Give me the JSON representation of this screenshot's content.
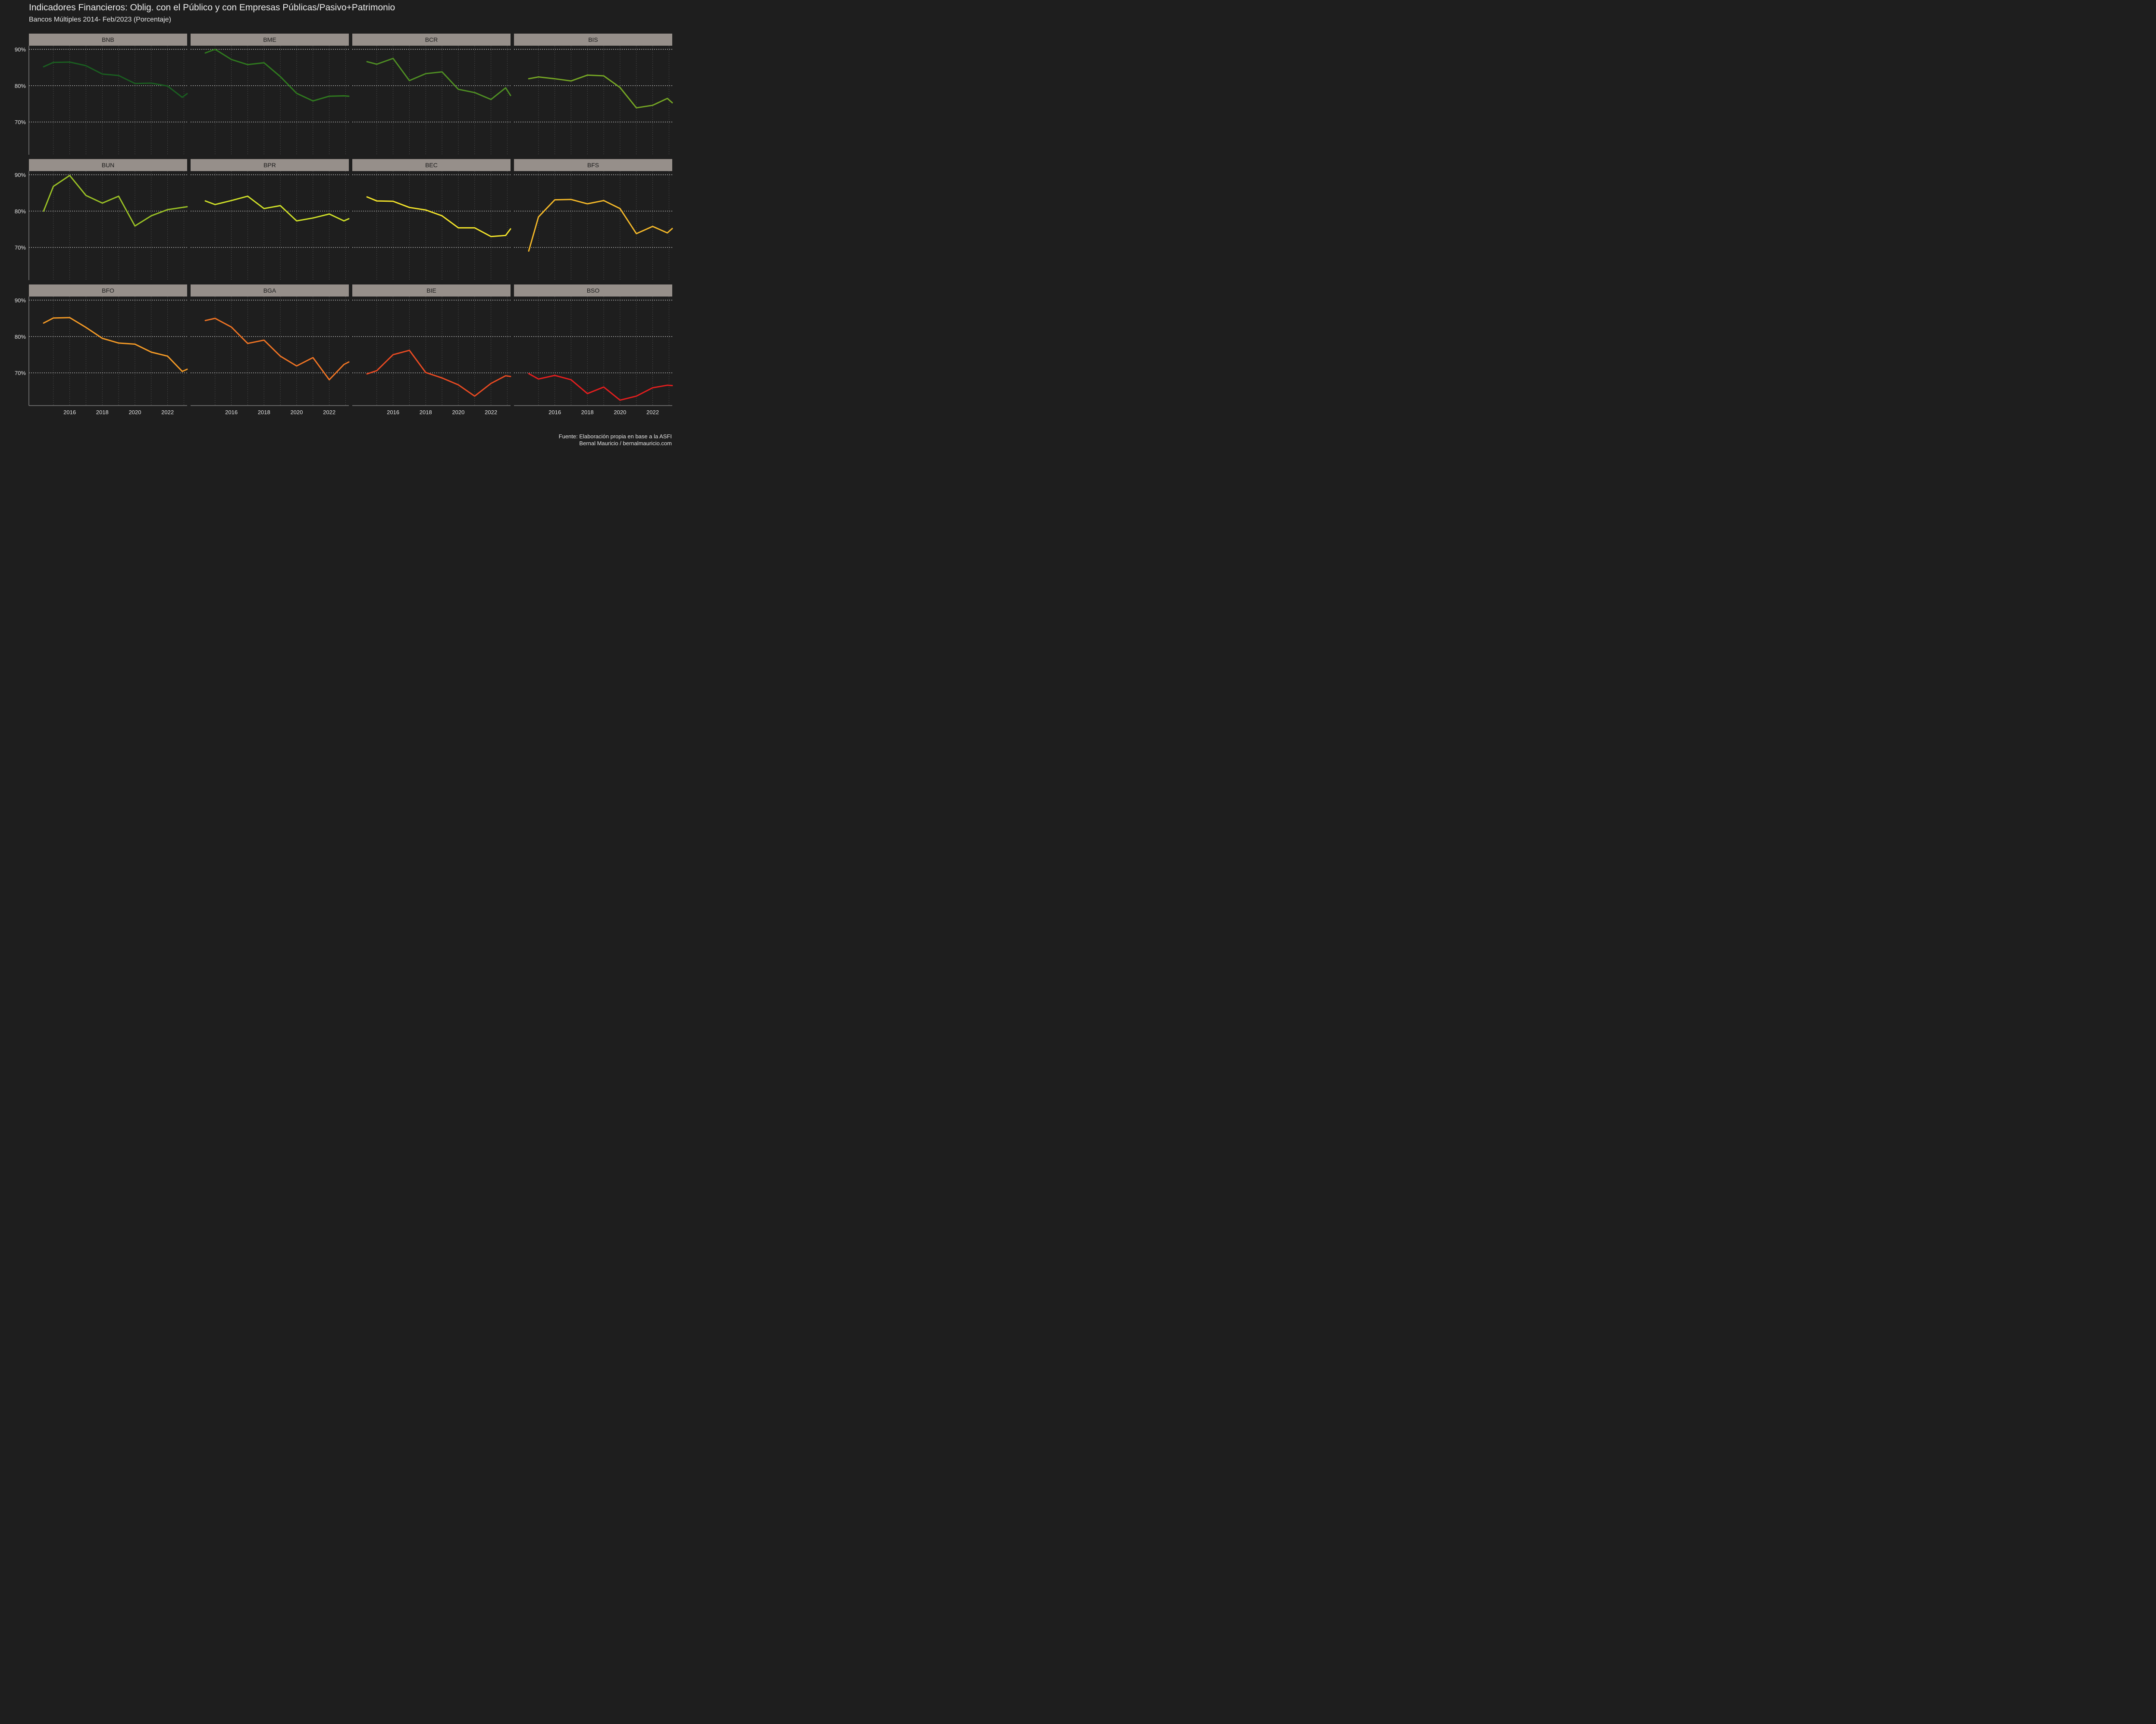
{
  "chart_data": {
    "type": "line",
    "title": "Indicadores Financieros: Oblig. con el Público y con Empresas Públicas/Pasivo+Patrimonio",
    "subtitle": "Bancos Múltiples 2014- Feb/2023 (Porcentaje)",
    "caption": [
      "Fuente: Elaboración propia en base a la ASFI",
      "Bernal Mauricio / bernalmauricio.com"
    ],
    "facet_layout": {
      "rows": 3,
      "cols": 4
    },
    "grid": true,
    "legend": "none",
    "xlim": [
      2013.5,
      2023.2
    ],
    "ylim": [
      61,
      91
    ],
    "x_ticks": [
      2016,
      2018,
      2020,
      2022
    ],
    "x_tick_labels": [
      "2016",
      "2018",
      "2020",
      "2022"
    ],
    "y_ticks": [
      70,
      80,
      90
    ],
    "y_tick_labels": [
      "70%",
      "80%",
      "90%"
    ],
    "x": [
      2014.0,
      2014.4,
      2015.0,
      2016.0,
      2017.0,
      2018.0,
      2019.0,
      2020.0,
      2021.0,
      2022.0,
      2022.9,
      2023.2
    ],
    "panels": [
      {
        "name": "BNB",
        "color": "#1a5e20",
        "values": [
          null,
          85.2,
          86.4,
          86.5,
          85.5,
          83.2,
          82.8,
          80.6,
          80.7,
          79.9,
          76.8,
          77.8
        ]
      },
      {
        "name": "BME",
        "color": "#2f7a1e",
        "values": [
          null,
          89.0,
          90.0,
          87.2,
          85.8,
          86.3,
          82.5,
          77.9,
          75.8,
          77.1,
          77.2,
          77.1
        ]
      },
      {
        "name": "BCR",
        "color": "#4f8f23",
        "values": [
          null,
          86.6,
          85.9,
          87.5,
          81.4,
          83.3,
          83.8,
          79.0,
          78.1,
          76.2,
          79.4,
          77.3
        ]
      },
      {
        "name": "BIS",
        "color": "#75a624",
        "values": [
          null,
          81.9,
          82.4,
          81.9,
          81.3,
          82.9,
          82.7,
          79.5,
          73.9,
          74.6,
          76.5,
          75.3
        ]
      },
      {
        "name": "BUN",
        "color": "#9ac125",
        "values": [
          null,
          80.0,
          86.8,
          89.8,
          84.3,
          82.2,
          84.1,
          75.9,
          78.7,
          80.4,
          null,
          81.2
        ]
      },
      {
        "name": "BPR",
        "color": "#cfe028",
        "values": [
          null,
          82.8,
          81.8,
          82.9,
          84.1,
          80.7,
          81.5,
          77.3,
          78.1,
          79.2,
          77.3,
          77.9
        ]
      },
      {
        "name": "BEC",
        "color": "#f3e42a",
        "values": [
          null,
          83.9,
          82.8,
          82.7,
          81.0,
          80.3,
          78.7,
          75.4,
          75.4,
          73.0,
          73.3,
          75.1
        ]
      },
      {
        "name": "BFS",
        "color": "#f4b829",
        "values": [
          null,
          69.0,
          78.4,
          83.1,
          83.2,
          82.0,
          82.9,
          80.7,
          73.8,
          75.8,
          74.0,
          75.2
        ]
      },
      {
        "name": "BFO",
        "color": "#f49a26",
        "values": [
          null,
          83.7,
          85.1,
          85.2,
          82.5,
          79.5,
          78.2,
          77.9,
          75.7,
          74.6,
          70.4,
          71.0
        ]
      },
      {
        "name": "BGA",
        "color": "#ef7424",
        "values": [
          null,
          84.4,
          85.0,
          82.6,
          78.1,
          79.0,
          74.6,
          71.9,
          74.2,
          68.1,
          72.3,
          73.0
        ]
      },
      {
        "name": "BIE",
        "color": "#e94a22",
        "values": [
          null,
          69.7,
          70.6,
          75.0,
          76.2,
          70.1,
          68.6,
          66.7,
          63.6,
          67.1,
          69.2,
          69.0
        ]
      },
      {
        "name": "BSO",
        "color": "#e31e1e",
        "values": [
          null,
          69.8,
          68.3,
          69.3,
          68.1,
          64.3,
          66.1,
          62.5,
          63.6,
          65.9,
          66.6,
          66.5
        ]
      }
    ]
  }
}
